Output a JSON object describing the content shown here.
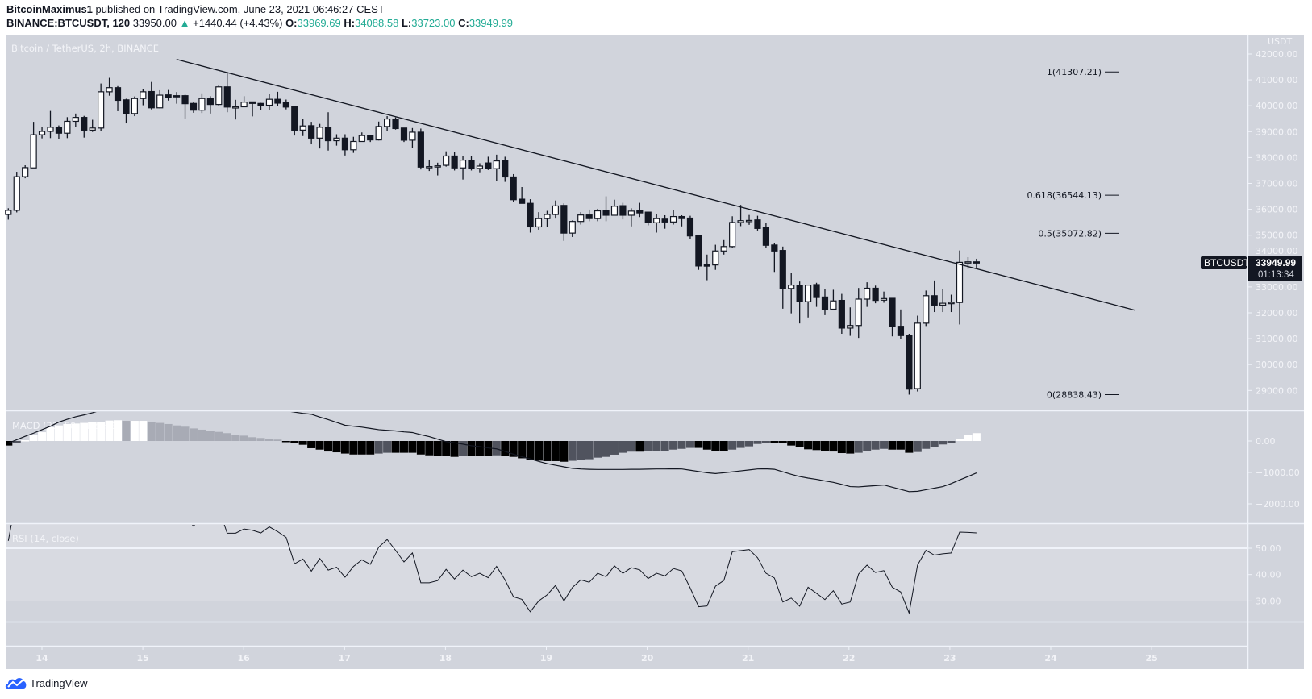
{
  "header": {
    "author": "BitcoinMaximus1",
    "published": "published on TradingView.com, June 23, 2021 06:46:27 CEST",
    "symbol": "BINANCE:BTCUSDT, 120",
    "last": "33950.00",
    "change": "+1440.44 (+4.43%)",
    "o_label": "O:",
    "o": "33969.69",
    "h_label": "H:",
    "h": "34088.58",
    "l_label": "L:",
    "l": "33723.00",
    "c_label": "C:",
    "c": "33949.99",
    "up_icon": "triangle-up-icon"
  },
  "footer": {
    "brand": "TradingView",
    "logo_icon": "tradingview-cloud-icon"
  },
  "colors": {
    "background": "#d1d4dc",
    "rsi_band": "#d8dae1",
    "up_candle": "#ffffff",
    "down_candle": "#131722",
    "positive_change": "#22ab94",
    "brand": "#2962ff"
  },
  "chart_data": {
    "type": "candlestick",
    "title": "Bitcoin / TetherUS, 2h, BINANCE",
    "currency_label": "USDT",
    "first_bar": "2021-06-13 16:00",
    "interval": "2h",
    "price_axis": {
      "range": [
        28300,
        42700
      ],
      "ticks": [
        "42000.00",
        "41000.00",
        "40000.00",
        "39000.00",
        "38000.00",
        "37000.00",
        "36000.00",
        "35000.00",
        "34000.00",
        "33000.00",
        "32000.00",
        "31000.00",
        "30000.00",
        "29000.00"
      ]
    },
    "time_axis": {
      "ticks": [
        "14",
        "15",
        "16",
        "17",
        "18",
        "19",
        "20",
        "21",
        "22",
        "23",
        "24",
        "25"
      ]
    },
    "last_price_label": {
      "symbol": "BTCUSDT",
      "price": "33949.99",
      "countdown": "01:13:34"
    },
    "candles": [
      [
        35800,
        36040,
        35600,
        35960
      ],
      [
        35960,
        37450,
        35880,
        37260
      ],
      [
        37260,
        37700,
        37200,
        37610
      ],
      [
        37600,
        39380,
        37600,
        38880
      ],
      [
        38880,
        39170,
        38740,
        39010
      ],
      [
        39010,
        39800,
        38750,
        39170
      ],
      [
        39170,
        39240,
        38720,
        38940
      ],
      [
        38940,
        39560,
        38750,
        39400
      ],
      [
        39400,
        39700,
        39170,
        39550
      ],
      [
        39550,
        39610,
        38770,
        39060
      ],
      [
        39060,
        39460,
        38990,
        39140
      ],
      [
        39140,
        40860,
        39010,
        40540
      ],
      [
        40540,
        41080,
        40390,
        40700
      ],
      [
        40700,
        40760,
        39790,
        40210
      ],
      [
        40230,
        40270,
        39320,
        39700
      ],
      [
        39700,
        40360,
        39600,
        40280
      ],
      [
        40280,
        40640,
        40020,
        40540
      ],
      [
        40550,
        40920,
        39860,
        39920
      ],
      [
        39920,
        40600,
        39900,
        40410
      ],
      [
        40420,
        40610,
        40200,
        40330
      ],
      [
        40390,
        40530,
        40080,
        40350
      ],
      [
        40390,
        40430,
        39510,
        40080
      ],
      [
        40090,
        40140,
        39730,
        39830
      ],
      [
        39830,
        40480,
        39720,
        40280
      ],
      [
        40280,
        40370,
        39700,
        40050
      ],
      [
        40050,
        40790,
        39990,
        40730
      ],
      [
        40730,
        41307,
        39750,
        39950
      ],
      [
        39960,
        40230,
        39470,
        39960
      ],
      [
        39960,
        40370,
        39970,
        40140
      ],
      [
        40150,
        40160,
        39590,
        40090
      ],
      [
        40090,
        40110,
        39830,
        40020
      ],
      [
        40020,
        40450,
        39830,
        40250
      ],
      [
        40250,
        40540,
        40000,
        40100
      ],
      [
        40120,
        40240,
        39860,
        39950
      ],
      [
        39960,
        40000,
        38850,
        39060
      ],
      [
        39060,
        39480,
        38830,
        39220
      ],
      [
        39230,
        39380,
        38510,
        38750
      ],
      [
        38750,
        39300,
        38350,
        39170
      ],
      [
        39170,
        39750,
        38270,
        38650
      ],
      [
        38650,
        38900,
        38460,
        38750
      ],
      [
        38750,
        38900,
        38080,
        38300
      ],
      [
        38300,
        38800,
        38180,
        38620
      ],
      [
        38620,
        38970,
        38620,
        38850
      ],
      [
        38850,
        38880,
        38600,
        38680
      ],
      [
        38680,
        39390,
        38660,
        39200
      ],
      [
        39200,
        39600,
        39030,
        39490
      ],
      [
        39490,
        39550,
        39080,
        39120
      ],
      [
        39140,
        39150,
        38600,
        38670
      ],
      [
        38670,
        39140,
        38360,
        38980
      ],
      [
        38980,
        39120,
        37540,
        37630
      ],
      [
        37640,
        37920,
        37480,
        37650
      ],
      [
        37680,
        37800,
        37310,
        37680
      ],
      [
        37700,
        38240,
        37650,
        38060
      ],
      [
        38060,
        38200,
        37500,
        37600
      ],
      [
        37600,
        38050,
        37150,
        37900
      ],
      [
        37900,
        38050,
        37500,
        37570
      ],
      [
        37580,
        37780,
        37430,
        37670
      ],
      [
        37790,
        38030,
        37520,
        37570
      ],
      [
        37570,
        38110,
        37090,
        37870
      ],
      [
        37870,
        38030,
        37060,
        37250
      ],
      [
        37250,
        37360,
        36290,
        36370
      ],
      [
        36390,
        36860,
        36230,
        36230
      ],
      [
        36230,
        36390,
        35100,
        35320
      ],
      [
        35320,
        35890,
        35210,
        35640
      ],
      [
        35640,
        35940,
        35320,
        35800
      ],
      [
        35800,
        36340,
        35640,
        36130
      ],
      [
        36150,
        36230,
        34780,
        35080
      ],
      [
        35080,
        35570,
        34930,
        35530
      ],
      [
        35530,
        35890,
        35410,
        35780
      ],
      [
        35780,
        35990,
        35540,
        35640
      ],
      [
        35640,
        36020,
        35540,
        35940
      ],
      [
        35940,
        36500,
        35540,
        35770
      ],
      [
        35770,
        36370,
        35770,
        36120
      ],
      [
        36140,
        36250,
        35610,
        35770
      ],
      [
        35770,
        36040,
        35340,
        35930
      ],
      [
        35940,
        36250,
        35700,
        35860
      ],
      [
        35890,
        35910,
        35380,
        35480
      ],
      [
        35480,
        35830,
        35100,
        35640
      ],
      [
        35620,
        35770,
        35250,
        35510
      ],
      [
        35510,
        35960,
        35410,
        35720
      ],
      [
        35720,
        35770,
        35340,
        35640
      ],
      [
        35660,
        35750,
        34840,
        34970
      ],
      [
        34980,
        35000,
        33660,
        33810
      ],
      [
        33850,
        34250,
        33260,
        33840
      ],
      [
        33850,
        34630,
        33660,
        34390
      ],
      [
        34390,
        34810,
        34250,
        34560
      ],
      [
        34560,
        35730,
        34520,
        35490
      ],
      [
        35490,
        36168,
        35350,
        35560
      ],
      [
        35570,
        35780,
        35400,
        35570
      ],
      [
        35590,
        35750,
        35180,
        35260
      ],
      [
        35310,
        35460,
        34520,
        34610
      ],
      [
        34620,
        34710,
        33580,
        34390
      ],
      [
        34410,
        34560,
        32160,
        32940
      ],
      [
        32940,
        33530,
        31980,
        33070
      ],
      [
        33070,
        33210,
        31590,
        32430
      ],
      [
        32430,
        33070,
        31820,
        33070
      ],
      [
        33090,
        33160,
        32230,
        32590
      ],
      [
        32610,
        32930,
        31910,
        32140
      ],
      [
        32140,
        32890,
        32110,
        32460
      ],
      [
        32480,
        32730,
        31190,
        31410
      ],
      [
        31410,
        32210,
        31110,
        31510
      ],
      [
        31510,
        32960,
        31030,
        32530
      ],
      [
        32530,
        33180,
        32230,
        32950
      ],
      [
        32950,
        33050,
        32370,
        32480
      ],
      [
        32490,
        32820,
        32390,
        32550
      ],
      [
        32560,
        32560,
        31090,
        31460
      ],
      [
        31480,
        32130,
        30980,
        31120
      ],
      [
        31120,
        31190,
        28838,
        29050
      ],
      [
        29070,
        31890,
        28960,
        31600
      ],
      [
        31600,
        32860,
        31490,
        32660
      ],
      [
        32660,
        33250,
        32030,
        32300
      ],
      [
        32300,
        32930,
        32030,
        32370
      ],
      [
        32390,
        32700,
        32030,
        32400
      ],
      [
        32400,
        34410,
        31550,
        33950
      ],
      [
        33950,
        34150,
        33700,
        33970
      ],
      [
        33969.69,
        34088.58,
        33723.0,
        33949.99
      ]
    ],
    "trendline": [
      {
        "time": "2021-06-15 08:00",
        "price": 41794
      },
      {
        "time": "2021-06-24 20:00",
        "price": 32103
      }
    ],
    "fib_levels": [
      {
        "label": "1(41307.21)",
        "price": 41307.21
      },
      {
        "label": "0.618(36544.13)",
        "price": 36544.13
      },
      {
        "label": "0.5(35072.82)",
        "price": 35072.82
      },
      {
        "label": "0(28838.43)",
        "price": 28838.43
      }
    ],
    "macd": {
      "title": "MACD (21, 50, close, 9)",
      "axis_ticks": [
        "0.00",
        "−1000.00",
        "−2000.00"
      ],
      "range": [
        -2600,
        950
      ],
      "histogram": [
        -145,
        -60,
        25,
        180,
        280,
        435,
        495,
        540,
        555,
        575,
        590,
        615,
        650,
        660,
        640,
        640,
        640,
        590,
        575,
        540,
        495,
        455,
        400,
        360,
        315,
        290,
        250,
        195,
        170,
        120,
        95,
        60,
        45,
        -35,
        -60,
        -120,
        -230,
        -275,
        -335,
        -360,
        -400,
        -430,
        -430,
        -430,
        -400,
        -375,
        -375,
        -375,
        -375,
        -430,
        -455,
        -480,
        -480,
        -505,
        -480,
        -480,
        -480,
        -480,
        -455,
        -480,
        -505,
        -550,
        -600,
        -625,
        -640,
        -640,
        -660,
        -630,
        -605,
        -580,
        -530,
        -505,
        -435,
        -375,
        -340,
        -340,
        -330,
        -325,
        -310,
        -275,
        -250,
        -220,
        -220,
        -275,
        -310,
        -310,
        -275,
        -220,
        -170,
        -95,
        -60,
        -60,
        -60,
        -145,
        -205,
        -265,
        -290,
        -315,
        -335,
        -385,
        -400,
        -375,
        -325,
        -275,
        -250,
        -275,
        -275,
        -375,
        -350,
        -250,
        -190,
        -110,
        -70,
        75,
        190,
        250
      ],
      "line": [
        -70,
        40,
        150,
        250,
        360,
        470,
        600,
        690,
        770,
        830,
        900,
        980,
        1060,
        1140,
        1220,
        1300,
        1330,
        1370,
        1400,
        1430,
        1470,
        1500,
        1470,
        1430,
        1400,
        1370,
        1330,
        1300,
        1240,
        1180,
        1130,
        1070,
        1010,
        960,
        920,
        880,
        850,
        760,
        680,
        590,
        500,
        470,
        440,
        400,
        360,
        340,
        320,
        290,
        270,
        200,
        140,
        60,
        -20,
        -60,
        -100,
        -150,
        -180,
        -220,
        -250,
        -330,
        -420,
        -500,
        -570,
        -650,
        -720,
        -770,
        -820,
        -870,
        -890,
        -900,
        -905,
        -905,
        -905,
        -905,
        -900,
        -900,
        -895,
        -890,
        -890,
        -885,
        -890,
        -930,
        -970,
        -1010,
        -1035,
        -1010,
        -980,
        -950,
        -920,
        -890,
        -885,
        -900,
        -980,
        -1060,
        -1130,
        -1180,
        -1220,
        -1270,
        -1315,
        -1380,
        -1450,
        -1460,
        -1440,
        -1420,
        -1400,
        -1470,
        -1540,
        -1610,
        -1600,
        -1550,
        -1500,
        -1450,
        -1355,
        -1240,
        -1130,
        -1015
      ]
    },
    "rsi": {
      "title": "RSI (14, close)",
      "axis_ticks": [
        "50.00",
        "40.00",
        "30.00"
      ],
      "band": [
        30,
        70
      ],
      "range": [
        20.8,
        59.2
      ],
      "values": [
        52.8,
        70,
        73,
        80,
        80,
        81,
        78,
        80,
        80,
        74,
        74,
        82,
        83,
        74,
        68,
        72,
        74,
        66,
        70,
        68,
        67,
        62,
        58.4,
        62,
        60,
        65,
        55.7,
        55.7,
        57.3,
        56.8,
        55.8,
        58.1,
        56.3,
        54.1,
        44.1,
        45.9,
        41.3,
        46.1,
        41.7,
        42.8,
        39,
        43.1,
        45.6,
        43.9,
        50.4,
        53.3,
        49.2,
        44.8,
        48.2,
        36.9,
        36.9,
        37.7,
        42,
        38.3,
        41.7,
        39.2,
        40.5,
        38.8,
        43.1,
        38,
        31.6,
        30.6,
        25.9,
        30,
        32.3,
        35.9,
        30,
        35.1,
        38,
        37.1,
        40.5,
        39.2,
        43.3,
        40.5,
        42.6,
        41.8,
        38.5,
        40.5,
        39.5,
        42.3,
        41.4,
        34.9,
        27.8,
        28.1,
        35.6,
        37.8,
        48.7,
        49.1,
        49.5,
        46.4,
        40.5,
        38.7,
        29.6,
        31.1,
        28,
        35.2,
        32.9,
        30.5,
        33.9,
        28.8,
        29.6,
        40.2,
        43.6,
        40.8,
        41.5,
        35.2,
        33.4,
        25.4,
        43.6,
        49.2,
        47.4,
        47.9,
        48.2,
        56.1,
        56,
        55.8
      ]
    }
  }
}
